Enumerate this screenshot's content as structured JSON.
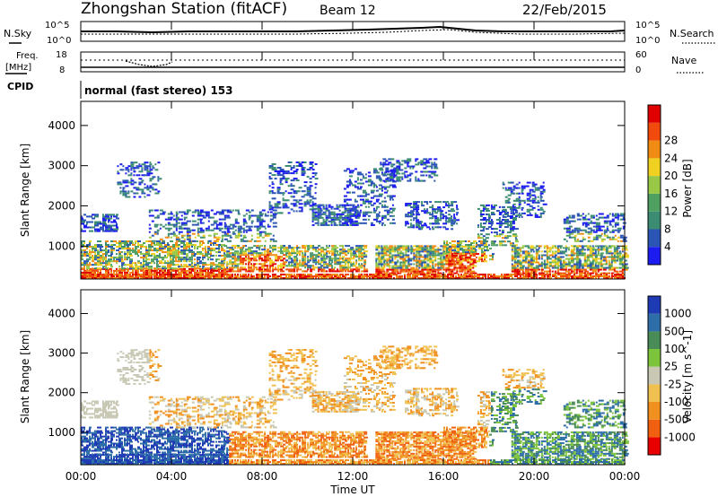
{
  "header": {
    "station": "Zhongshan Station (fitACF)",
    "beam": "Beam 12",
    "date": "22/Feb/2015"
  },
  "noise_panel": {
    "left_label": "N.Sky",
    "left_ticks": [
      "10^5",
      "10^0"
    ],
    "right_ticks": [
      "10^5",
      "10^0"
    ],
    "right_label": "N.Search"
  },
  "freq_panel": {
    "left_label_1": "Freq.",
    "left_label_2": "[MHz]",
    "left_ticks": [
      "18",
      "8"
    ],
    "right_ticks": [
      "60",
      "0"
    ],
    "right_label": "Nave"
  },
  "cpid": {
    "label": "CPID",
    "value": "normal (fast stereo) 153"
  },
  "colors": {
    "power_scale": [
      "#1c1cf0",
      "#2b55b5",
      "#3b8c73",
      "#4fa060",
      "#98c846",
      "#f0d020",
      "#f08c14",
      "#f04a0c",
      "#e00000"
    ],
    "velocity_scale": [
      "#1e3ab5",
      "#2e6ea8",
      "#4a8c58",
      "#7cc43c",
      "#c8c8b4",
      "#f0c050",
      "#f09020",
      "#f06010",
      "#e80000"
    ]
  },
  "chart_data": [
    {
      "type": "heatmap",
      "panel": "power",
      "ylabel": "Slant Range [km]",
      "yticks": [
        "1000",
        "2000",
        "3000",
        "4000"
      ],
      "ylim": [
        180,
        4600
      ],
      "colorbar_label": "Power [dB]",
      "colorbar_ticks": [
        "4",
        "8",
        "12",
        "16",
        "20",
        "24",
        "28"
      ]
    },
    {
      "type": "heatmap",
      "panel": "velocity",
      "ylabel": "Slant Range [km]",
      "yticks": [
        "1000",
        "2000",
        "3000",
        "4000"
      ],
      "ylim": [
        180,
        4600
      ],
      "colorbar_label": "Velocity [m s^-1]",
      "colorbar_ticks": [
        "1000",
        "500",
        "100",
        "25",
        "-25",
        "-100",
        "-500",
        "-1000"
      ],
      "xlabel": "Time UT",
      "xticks": [
        "00:00",
        "04:00",
        "08:00",
        "12:00",
        "16:00",
        "20:00",
        "00:00"
      ]
    }
  ]
}
